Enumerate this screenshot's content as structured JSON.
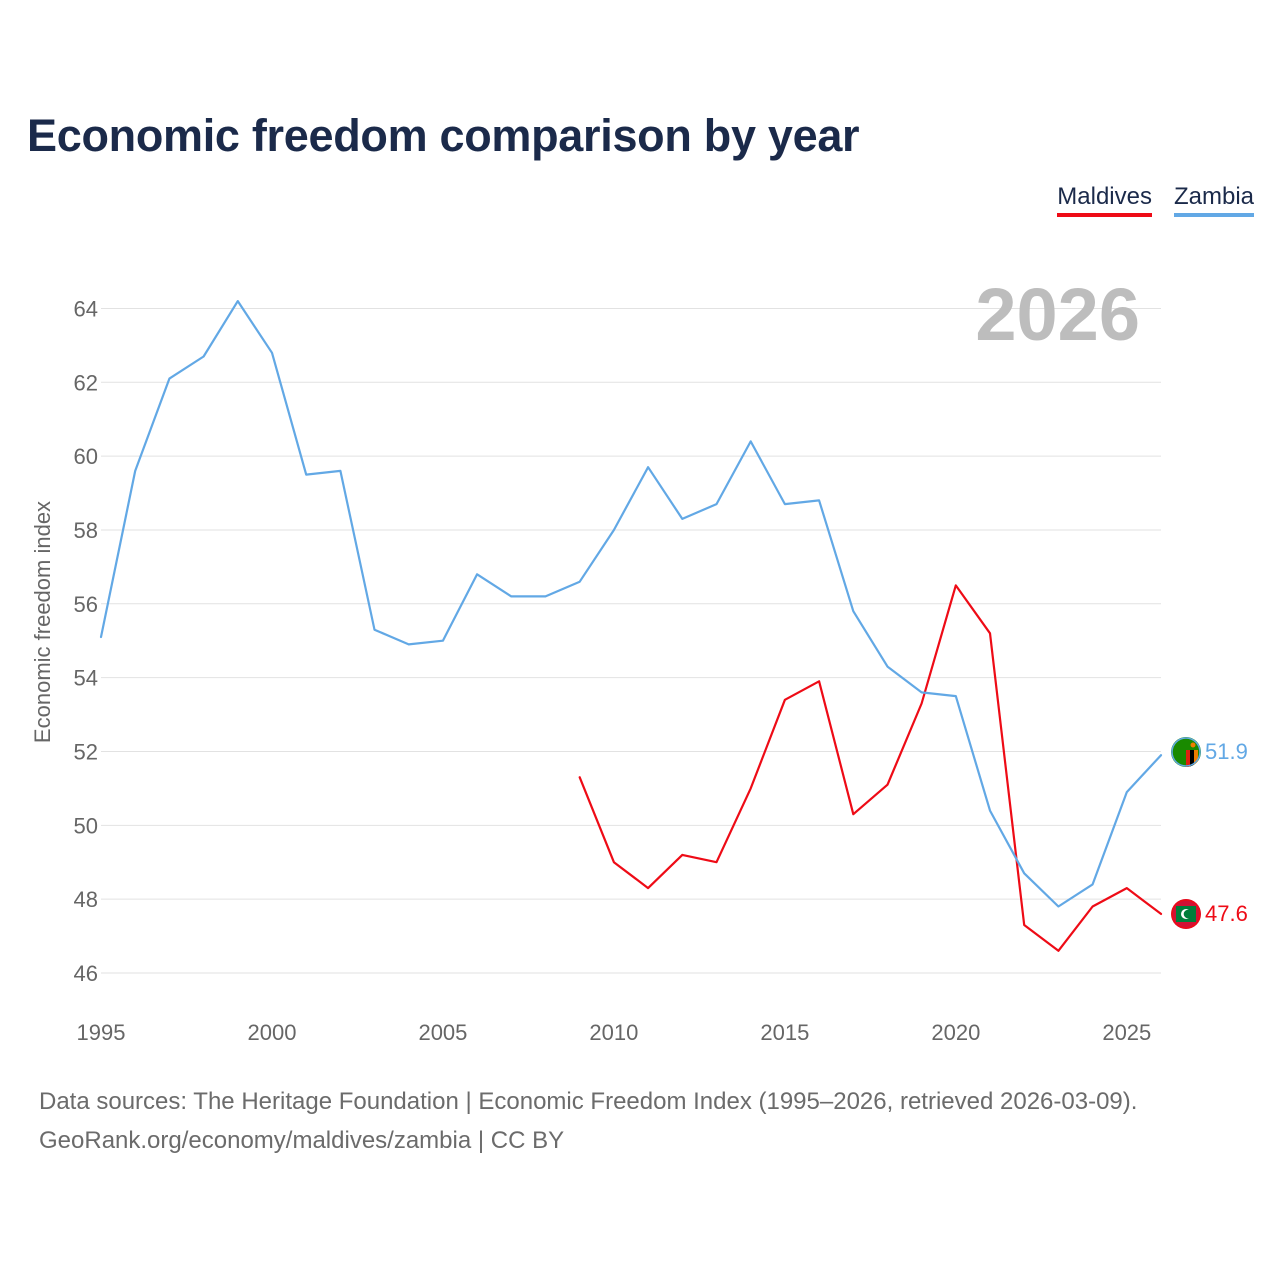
{
  "chart_data": {
    "type": "line",
    "title": "Economic freedom comparison by year",
    "ylabel": "Economic freedom index",
    "xlabel": "",
    "year_label": "2026",
    "xlim": [
      1995,
      2026
    ],
    "ylim": [
      46,
      64.5
    ],
    "x_ticks": [
      1995,
      2000,
      2005,
      2010,
      2015,
      2020,
      2025
    ],
    "y_ticks": [
      46,
      48,
      50,
      52,
      54,
      56,
      58,
      60,
      62,
      64
    ],
    "legend_position": "top-right",
    "series": [
      {
        "name": "Maldives",
        "color": "#ee0b16",
        "x": [
          2009,
          2010,
          2011,
          2012,
          2013,
          2014,
          2015,
          2016,
          2017,
          2018,
          2019,
          2020,
          2021,
          2022,
          2023,
          2024,
          2025,
          2026
        ],
        "values": [
          51.3,
          49.0,
          48.3,
          49.2,
          49.0,
          51.0,
          53.4,
          53.9,
          50.3,
          51.1,
          53.3,
          56.5,
          55.2,
          47.3,
          46.6,
          47.8,
          48.3,
          47.6
        ],
        "end_label": "47.6",
        "flag_icon": "maldives-flag-icon"
      },
      {
        "name": "Zambia",
        "color": "#62a8e5",
        "x": [
          1995,
          1996,
          1997,
          1998,
          1999,
          2000,
          2001,
          2002,
          2003,
          2004,
          2005,
          2006,
          2007,
          2008,
          2009,
          2010,
          2011,
          2012,
          2013,
          2014,
          2015,
          2016,
          2017,
          2018,
          2019,
          2020,
          2021,
          2022,
          2023,
          2024,
          2025,
          2026
        ],
        "values": [
          55.1,
          59.6,
          62.1,
          62.7,
          64.2,
          62.8,
          59.5,
          59.6,
          55.3,
          54.9,
          55.0,
          56.8,
          56.2,
          56.2,
          56.6,
          58.0,
          59.7,
          58.3,
          58.7,
          60.4,
          58.7,
          58.8,
          55.8,
          54.3,
          53.6,
          53.5,
          50.4,
          48.7,
          47.8,
          48.4,
          50.9,
          51.9
        ],
        "end_label": "51.9",
        "flag_icon": "zambia-flag-icon"
      }
    ]
  },
  "footer": {
    "source": "Data sources: The Heritage Foundation | Economic Freedom Index (1995–2026, retrieved 2026-03-09).",
    "credit": "GeoRank.org/economy/maldives/zambia | CC BY"
  }
}
